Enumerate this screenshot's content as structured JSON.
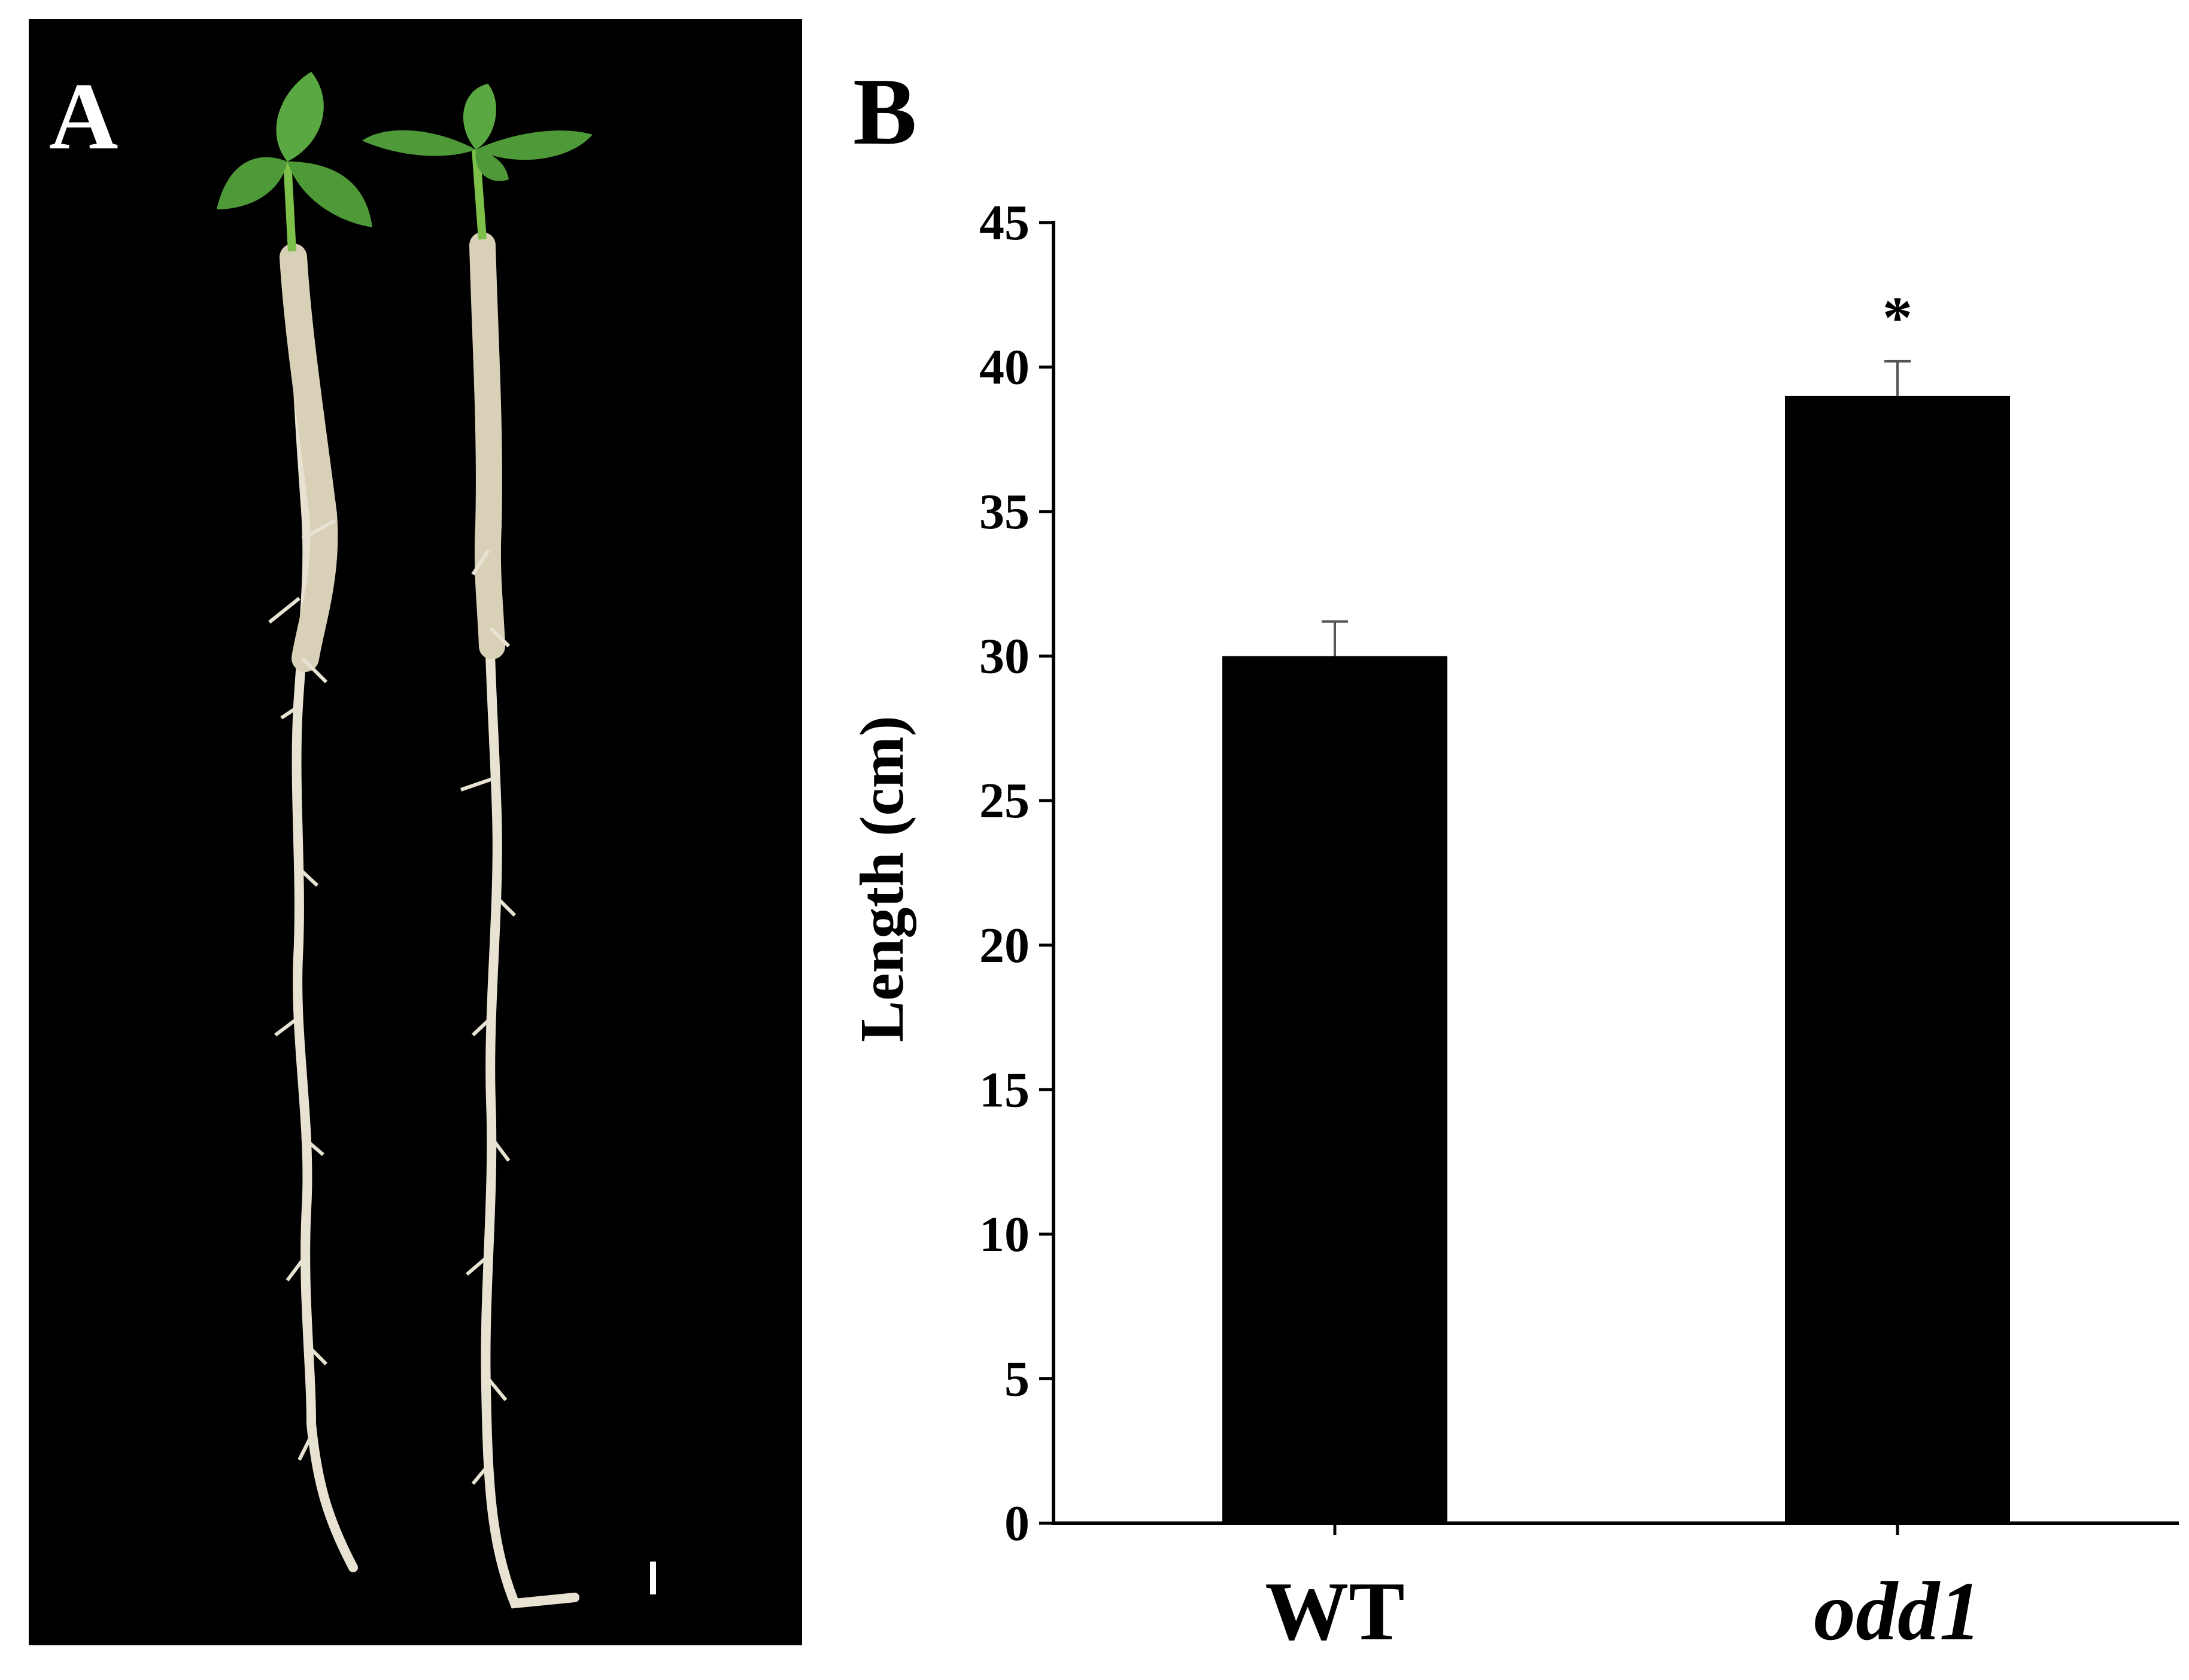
{
  "panels": {
    "a_label": "A",
    "b_label": "B"
  },
  "photo": {
    "background": "#000000",
    "leaf_color": "#4f9a38",
    "root_color": "#e8e2d2",
    "scale_bar_color": "#ffffff"
  },
  "chart_data": {
    "type": "bar",
    "categories": [
      "WT",
      "odd1"
    ],
    "values": [
      30.0,
      39.0
    ],
    "errors": [
      1.2,
      1.2
    ],
    "significance": [
      "",
      "*"
    ],
    "title": "",
    "xlabel": "",
    "ylabel": "Length (cm)",
    "ylim": [
      0,
      45
    ],
    "yticks": [
      0,
      5,
      10,
      15,
      20,
      25,
      30,
      35,
      40,
      45
    ],
    "bar_color": "#000000",
    "grid": false,
    "legend": "none"
  }
}
